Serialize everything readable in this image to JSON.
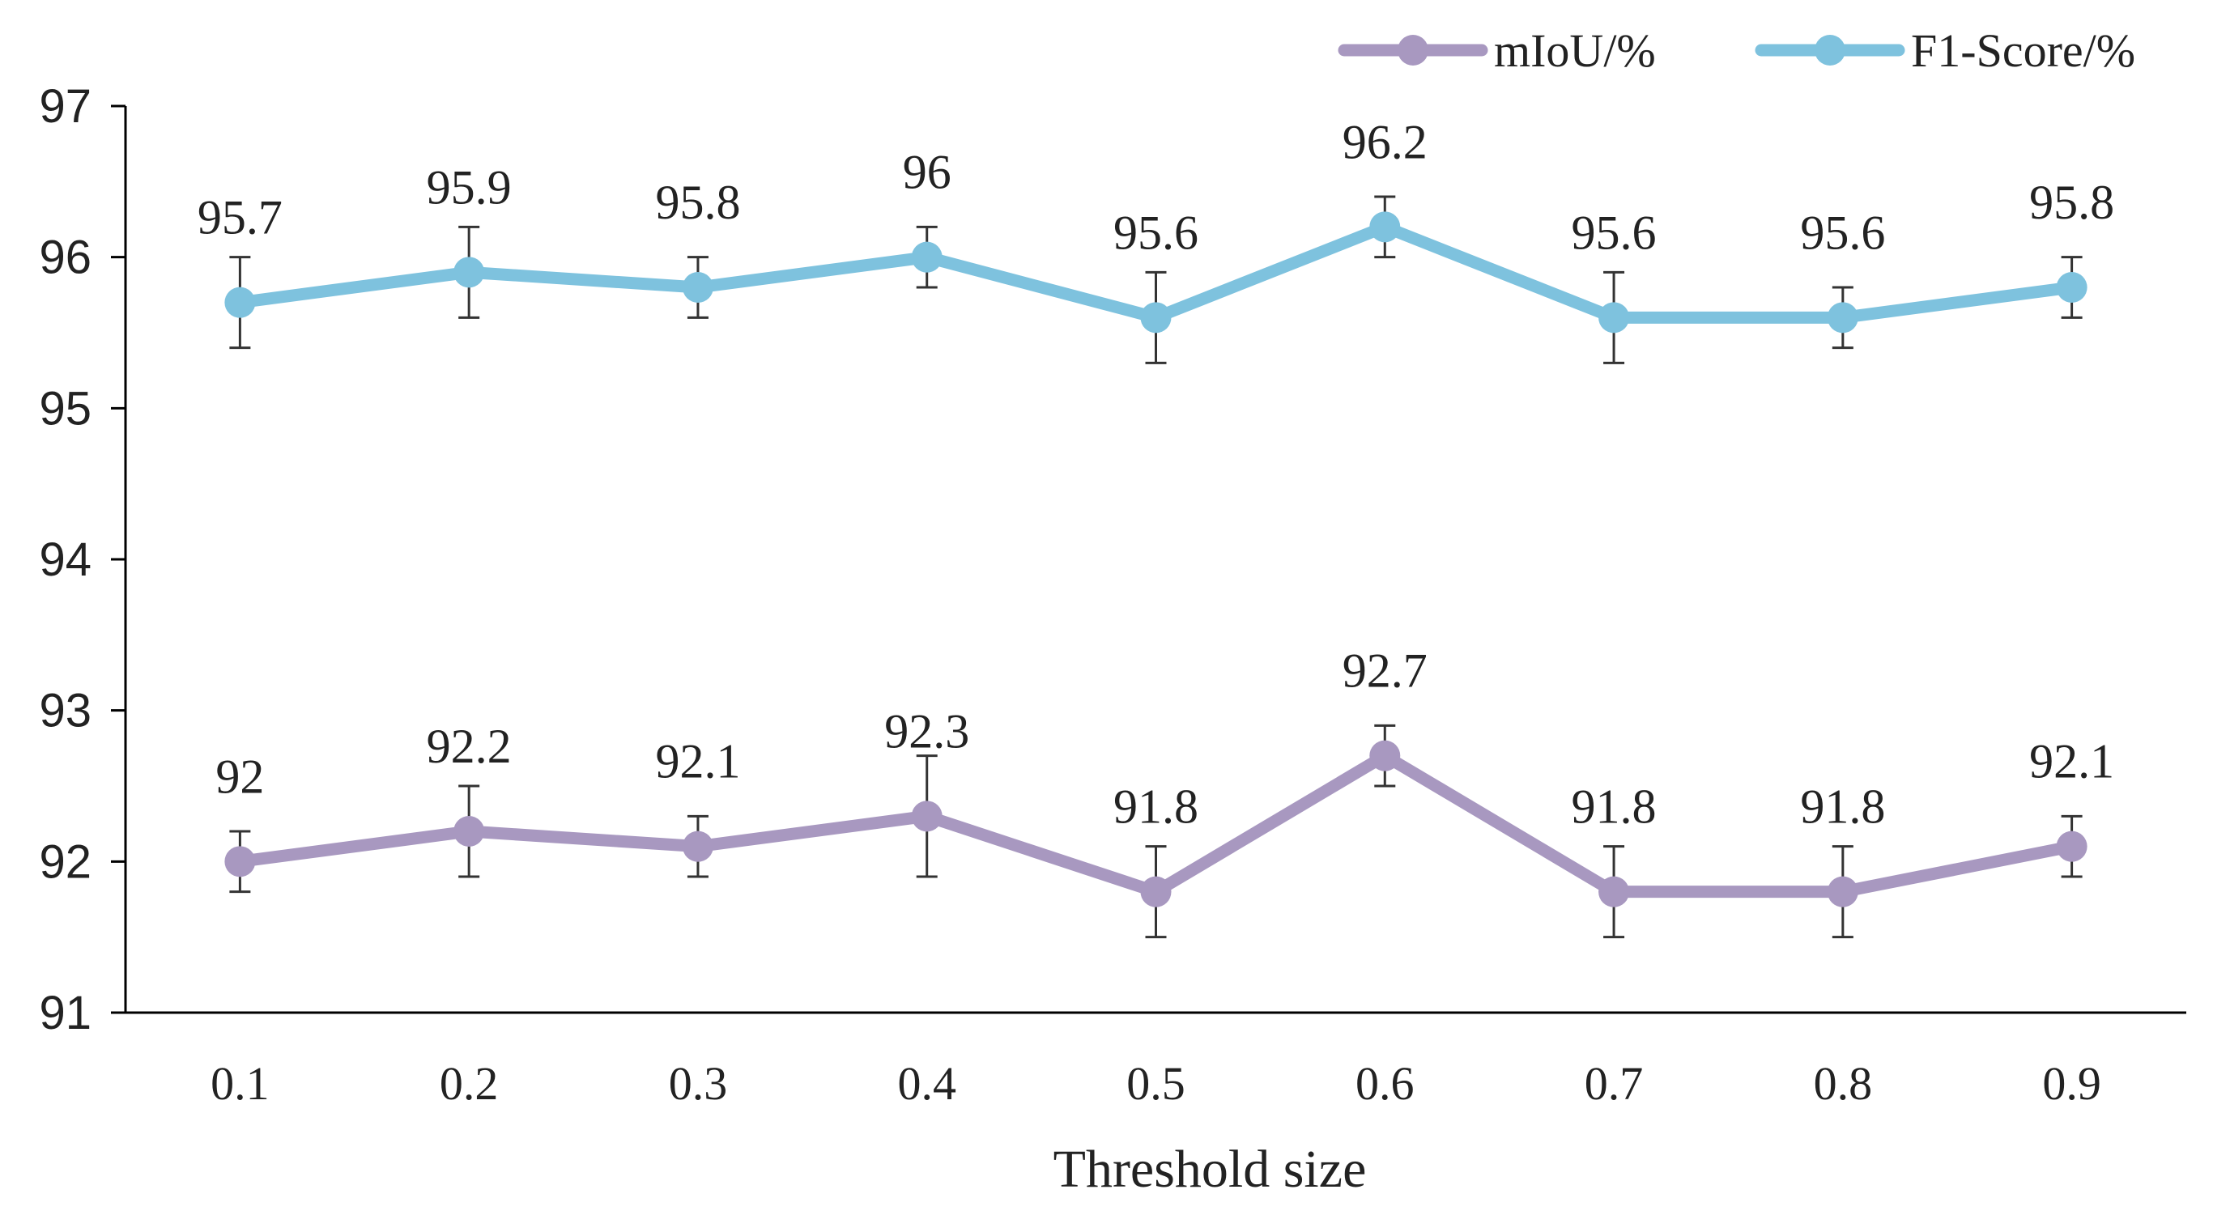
{
  "chart_data": {
    "type": "line",
    "title": "",
    "xlabel": "Threshold size",
    "ylabel": "",
    "ylim": [
      91,
      97
    ],
    "yticks": [
      "91",
      "92",
      "93",
      "94",
      "95",
      "96",
      "97"
    ],
    "categories": [
      "0.1",
      "0.2",
      "0.3",
      "0.4",
      "0.5",
      "0.6",
      "0.7",
      "0.8",
      "0.9"
    ],
    "legend_position": "top-right",
    "series": [
      {
        "name": "mIoU/%",
        "color": "#A898C0",
        "values": [
          92,
          92.2,
          92.1,
          92.3,
          91.8,
          92.7,
          91.8,
          91.8,
          92.1
        ],
        "labels": [
          "92",
          "92.2",
          "92.1",
          "92.3",
          "91.8",
          "92.7",
          "91.8",
          "91.8",
          "92.1"
        ],
        "error": [
          0.2,
          0.3,
          0.2,
          0.4,
          0.3,
          0.2,
          0.3,
          0.3,
          0.2
        ]
      },
      {
        "name": "F1-Score/%",
        "color": "#7EC2DE",
        "values": [
          95.7,
          95.9,
          95.8,
          96,
          95.6,
          96.2,
          95.6,
          95.6,
          95.8
        ],
        "labels": [
          "95.7",
          "95.9",
          "95.8",
          "96",
          "95.6",
          "96.2",
          "95.6",
          "95.6",
          "95.8"
        ],
        "error": [
          0.3,
          0.3,
          0.2,
          0.2,
          0.3,
          0.2,
          0.3,
          0.2,
          0.2
        ]
      }
    ]
  }
}
